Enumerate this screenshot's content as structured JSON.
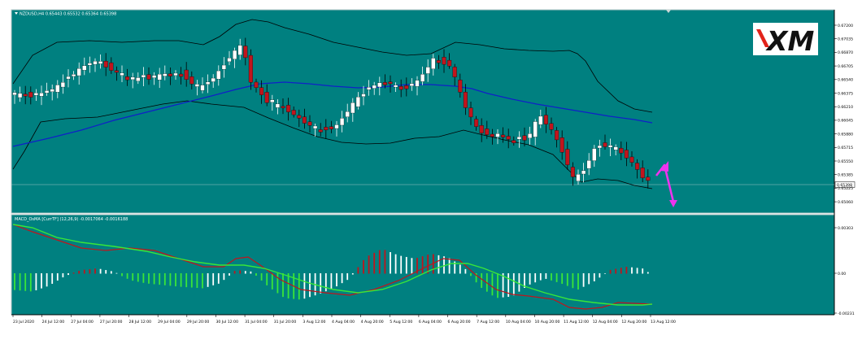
{
  "main_header": "NZDUSD,H4  0.65443 0.65532 0.65364 0.65398",
  "logo_text": "XM",
  "price_tag": "0.65398",
  "price_ticks": [
    "0.67200",
    "0.67035",
    "0.66870",
    "0.66705",
    "0.66540",
    "0.66375",
    "0.66210",
    "0.66045",
    "0.65880",
    "0.65715",
    "0.65550",
    "0.65385",
    "0.65225",
    "0.65060"
  ],
  "sub_header": "MACD_OsMA [CurrTF] (12,26,9) -0.0017064 -0.0016188",
  "sub_ticks": [
    "0.00303",
    "0.00",
    "-0.00231"
  ],
  "time_labels": [
    "23 Jul 2020",
    "24 Jul 12:00",
    "27 Jul 04:00",
    "27 Jul 20:00",
    "28 Jul 12:00",
    "29 Jul 04:00",
    "29 Jul 20:00",
    "30 Jul 12:00",
    "31 Jul 04:00",
    "31 Jul 20:00",
    "3 Aug 12:00",
    "4 Aug 04:00",
    "4 Aug 20:00",
    "5 Aug 12:00",
    "6 Aug 04:00",
    "6 Aug 20:00",
    "7 Aug 12:00",
    "10 Aug 04:00",
    "10 Aug 20:00",
    "11 Aug 12:00",
    "12 Aug 04:00",
    "12 Aug 20:00",
    "13 Aug 12:00"
  ],
  "colors": {
    "background": "#008080",
    "bull_candle": "#ffffff",
    "bear_candle": "#c0151d",
    "ma_line": "#1020c8",
    "envelope": "#000000",
    "macd_red": "#c0151d",
    "signal_green": "#39e639",
    "arrow": "#ee33ee"
  }
}
